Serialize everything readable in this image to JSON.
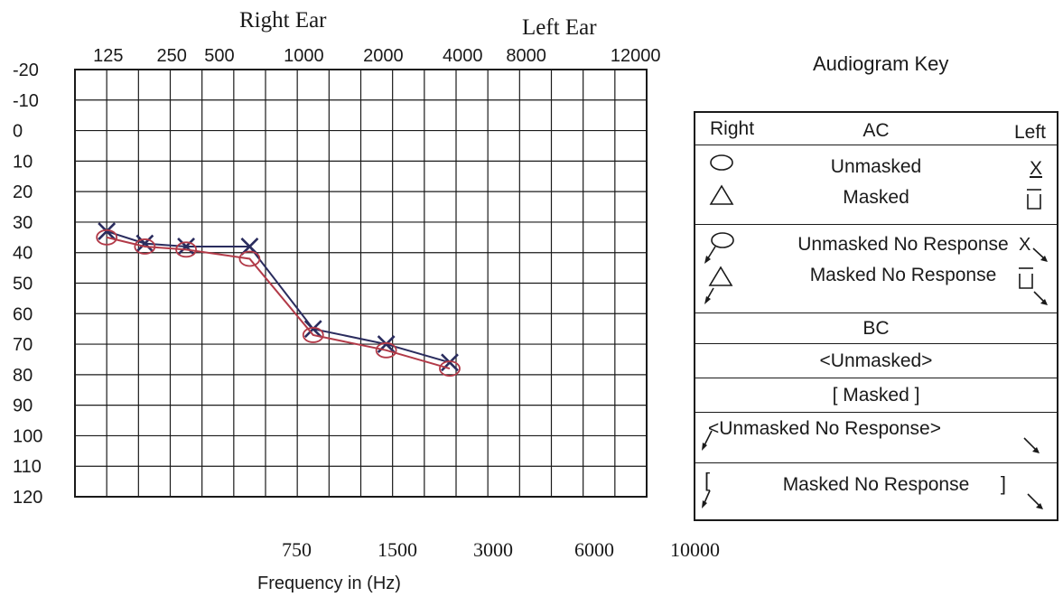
{
  "chart_data": {
    "type": "line",
    "top_labels": {
      "right_ear": "Right Ear",
      "left_ear": "Left Ear"
    },
    "x_top_ticks": [
      "125",
      "250",
      "500",
      "1000",
      "2000",
      "4000",
      "8000",
      "12000"
    ],
    "x_bottom_ticks": [
      "750",
      "1500",
      "3000",
      "6000",
      "10000"
    ],
    "xlabel": "Frequency in (Hz)",
    "y_ticks": [
      "-20",
      "-10",
      "0",
      "10",
      "20",
      "30",
      "40",
      "50",
      "60",
      "70",
      "80",
      "90",
      "100",
      "110",
      "120"
    ],
    "ylim": [
      -20,
      120
    ],
    "y_inverted": true,
    "grid": true,
    "x": [
      125,
      250,
      500,
      1000,
      2000,
      4000,
      8000
    ],
    "series": [
      {
        "values": [
          33,
          37,
          38,
          38,
          65,
          70,
          76
        ],
        "color": "#2a2c5e",
        "marker": "x"
      },
      {
        "values": [
          35,
          38,
          39,
          42,
          67,
          72,
          78
        ],
        "color": "#b23a48",
        "marker": "o"
      }
    ]
  },
  "key": {
    "title": "Audiogram Key",
    "header": {
      "right": "Right",
      "ac": "AC",
      "left": "Left"
    },
    "ac_unmasked": "Unmasked",
    "ac_masked": "Masked",
    "ac_unmasked_nr": "Unmasked No Response",
    "ac_masked_nr": "Masked No Response",
    "bc": "BC",
    "bc_unmasked": "<Unmasked>",
    "bc_masked": "[  Masked  ]",
    "bc_unmasked_nr": "<Unmasked No Response>",
    "bc_masked_nr": "Masked No Response",
    "bracket_open": "[",
    "bracket_close": "]",
    "sym_x": "X"
  },
  "colors": {
    "ink": "#1a1a1a",
    "right_line": "#b23a48",
    "left_line": "#2a2c5e"
  }
}
